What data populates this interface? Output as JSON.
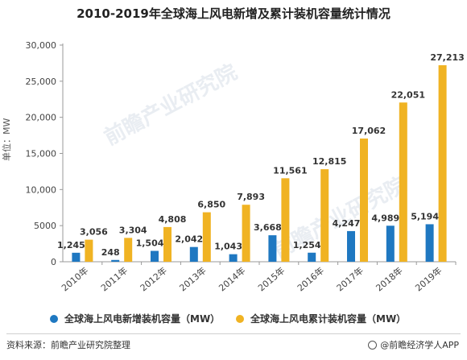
{
  "header": {
    "title": "2010-2019年全球海上风电新增及累计装机容量统计情况"
  },
  "watermark": "前瞻产业研究院",
  "chart_data": {
    "type": "bar",
    "title": "2010-2019年全球海上风电新增及累计装机容量统计情况",
    "ylabel": "单位：MW",
    "xlabel": "",
    "categories": [
      "2010年",
      "2011年",
      "2012年",
      "2013年",
      "2014年",
      "2015年",
      "2016年",
      "2017年",
      "2018年",
      "2019年"
    ],
    "ylim": [
      0,
      30000
    ],
    "yticks": [
      0,
      5000,
      10000,
      15000,
      20000,
      25000,
      30000
    ],
    "ytick_labels": [
      "0",
      "5000",
      "10,000",
      "15,000",
      "20,000",
      "25,000",
      "30,000"
    ],
    "grid": false,
    "legend_position": "bottom",
    "series": [
      {
        "name": "全球海上风电新增装机容量（MW）",
        "color": "#1f78c1",
        "values": [
          1245,
          248,
          1504,
          2042,
          1043,
          3668,
          1254,
          4247,
          4989,
          5194
        ],
        "labels": [
          "1,245",
          "248",
          "1,504",
          "2,042",
          "1,043",
          "3,668",
          "1,254",
          "4,247",
          "4,989",
          "5,194"
        ]
      },
      {
        "name": "全球海上风电累计装机容量（MW）",
        "color": "#f0b323",
        "values": [
          3056,
          3304,
          4808,
          6850,
          7893,
          11561,
          12815,
          17062,
          22051,
          27213
        ],
        "labels": [
          "3,056",
          "3,304",
          "4,808",
          "6,850",
          "7,893",
          "11,561",
          "12,815",
          "17,062",
          "22,051",
          "27,213"
        ]
      }
    ]
  },
  "footer": {
    "source": "资料来源：前瞻产业研究院整理",
    "brand": "@前瞻经济学人APP"
  }
}
